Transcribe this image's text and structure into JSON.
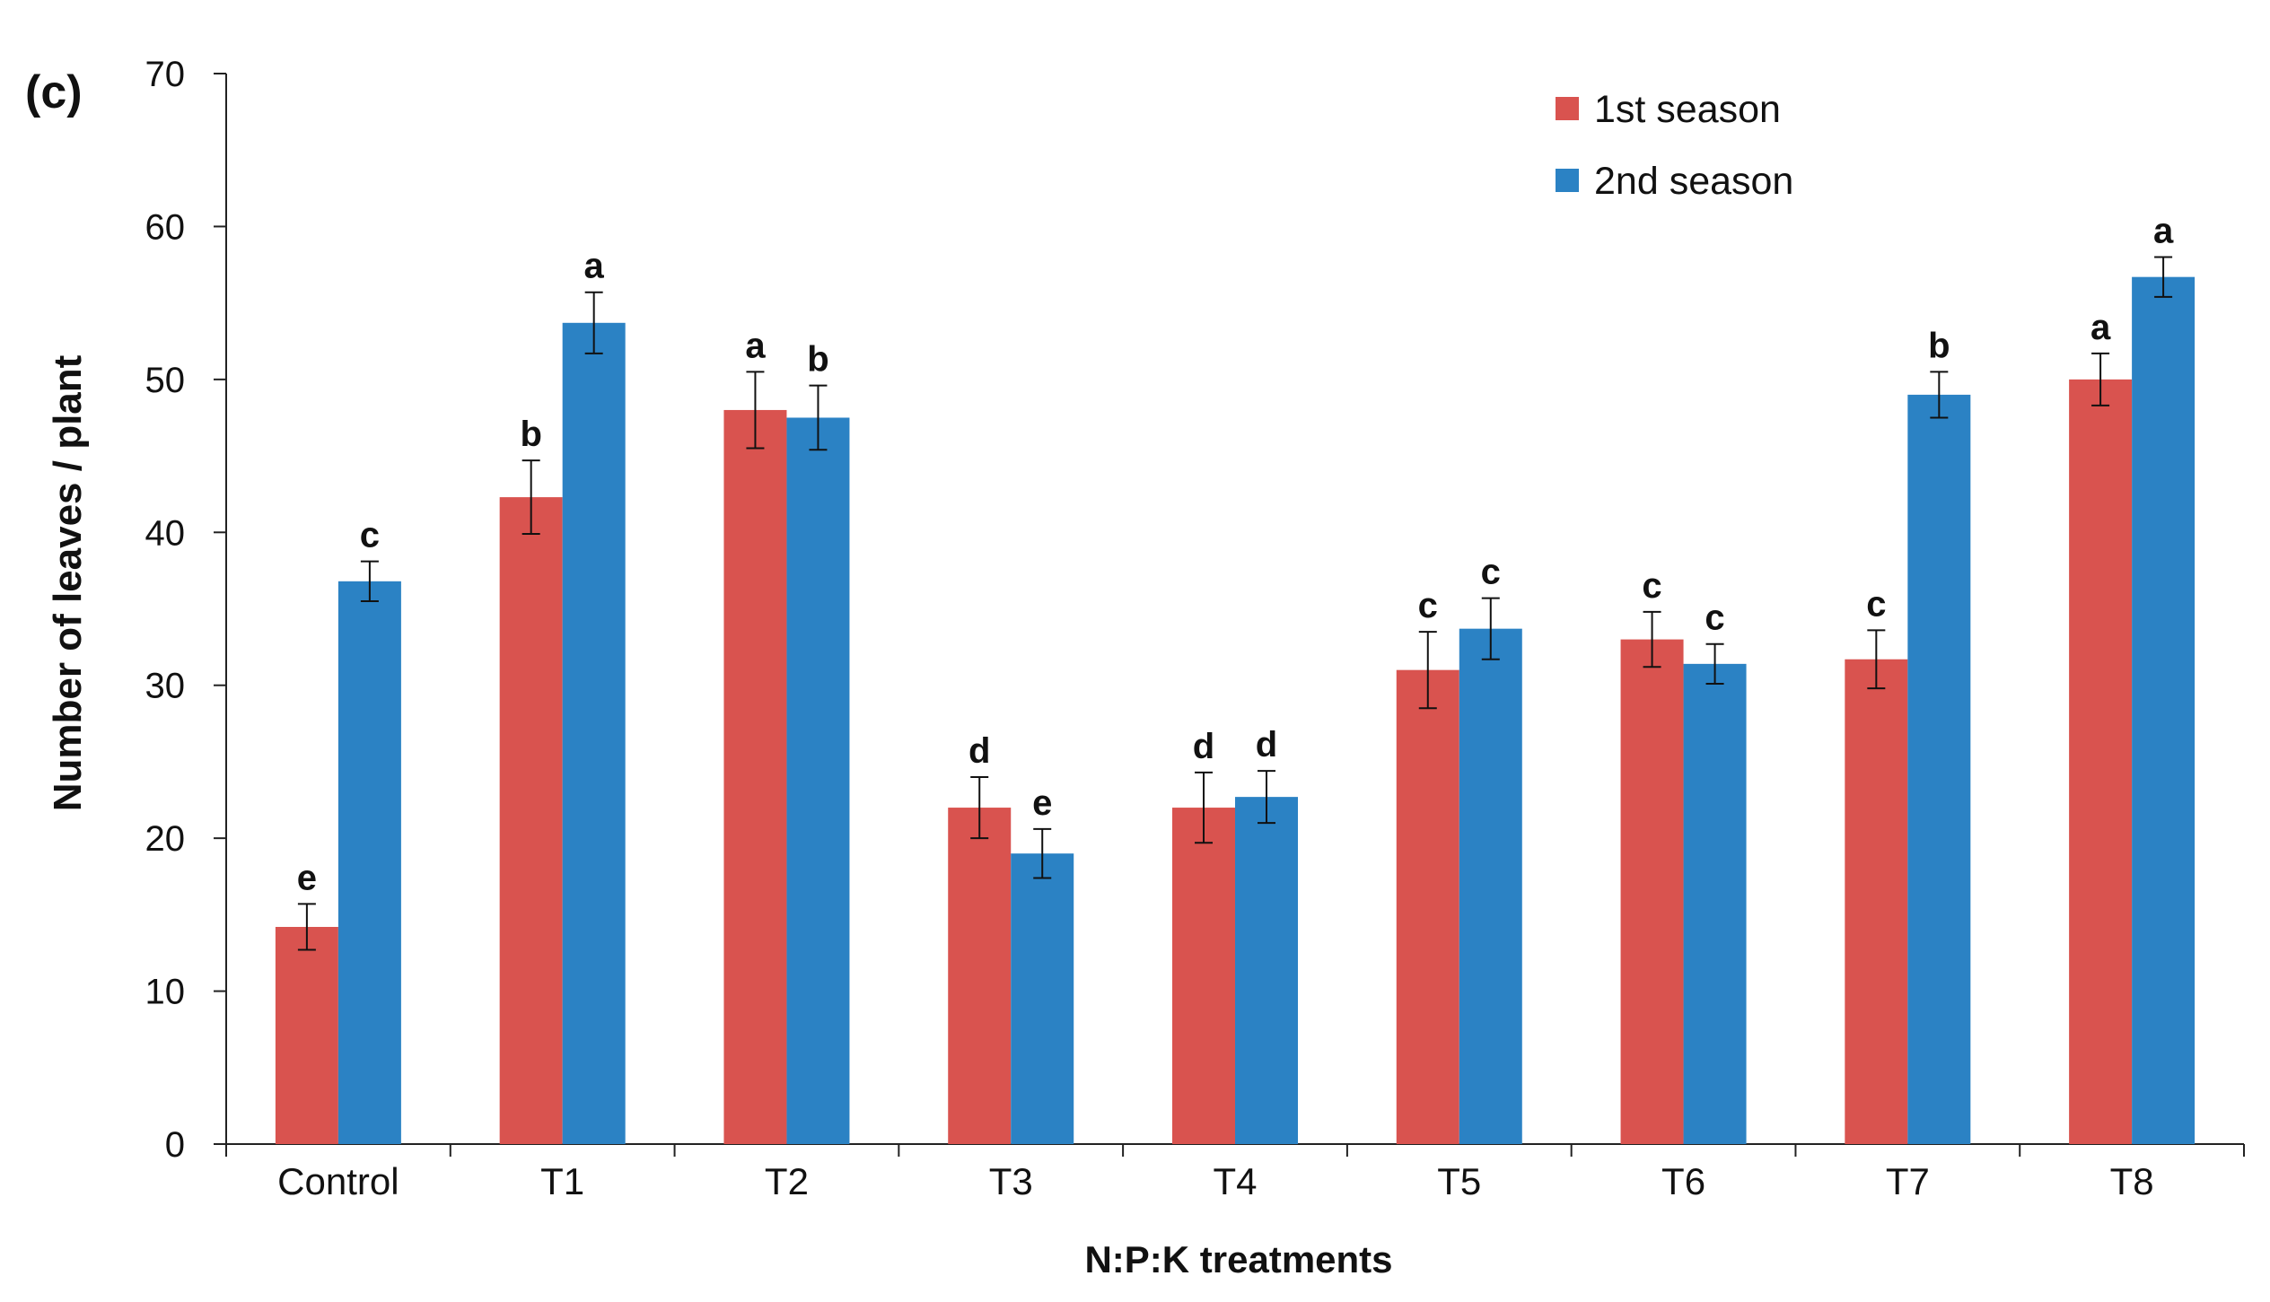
{
  "chart_data": {
    "type": "bar",
    "panel_label": "(c)",
    "title": "",
    "xlabel": "N:P:K treatments",
    "ylabel": "Number of leaves / plant",
    "ylim": [
      0,
      70
    ],
    "yticks": [
      0,
      10,
      20,
      30,
      40,
      50,
      60,
      70
    ],
    "grid": false,
    "legend_position": "top-right",
    "categories": [
      "Control",
      "T1",
      "T2",
      "T3",
      "T4",
      "T5",
      "T6",
      "T7",
      "T8"
    ],
    "series": [
      {
        "name": "1st  season",
        "color": "#d9534f",
        "values": [
          14.2,
          42.3,
          48,
          22,
          22,
          31,
          33,
          31.7,
          50
        ],
        "errors": [
          1.5,
          2.4,
          2.5,
          2,
          2.3,
          2.5,
          1.8,
          1.9,
          1.7
        ],
        "letters": [
          "e",
          "b",
          "a",
          "d",
          "d",
          "c",
          "c",
          "c",
          "a"
        ]
      },
      {
        "name": "2nd season",
        "color": "#2b82c4",
        "values": [
          36.8,
          53.7,
          47.5,
          19,
          22.7,
          33.7,
          31.4,
          49,
          56.7
        ],
        "errors": [
          1.3,
          2,
          2.1,
          1.6,
          1.7,
          2,
          1.3,
          1.5,
          1.3
        ],
        "letters": [
          "c",
          "a",
          "b",
          "e",
          "d",
          "c",
          "c",
          "b",
          "a"
        ]
      }
    ]
  }
}
